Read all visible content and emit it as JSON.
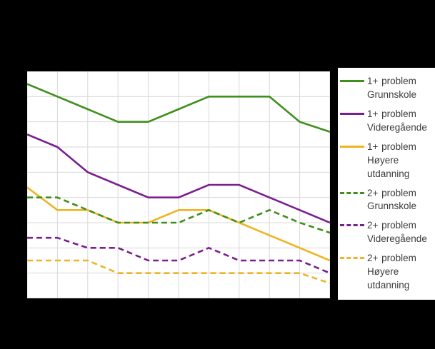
{
  "chart_data": {
    "type": "line",
    "title": "",
    "title_visible": false,
    "x_point_count": 11,
    "x": [
      1,
      2,
      3,
      4,
      5,
      6,
      7,
      8,
      9,
      10,
      11
    ],
    "x_tick_labels_visible": false,
    "y_tick_labels_visible": false,
    "ylim": [
      0,
      45
    ],
    "y_gridline_step": 5,
    "x_gridline_count": 11,
    "grid": true,
    "legend_position": "right",
    "note": "Title and axis tick labels are obscured by black background; y values estimated from unlabeled gridlines assuming a 0-45 scale.",
    "series": [
      {
        "name": "1+ problem Grunnskole",
        "color": "#3f8f1c",
        "line_style": "solid",
        "values": [
          42.5,
          40,
          37.5,
          35,
          35,
          37.5,
          40,
          40,
          40,
          35,
          33
        ]
      },
      {
        "name": "1+ problem Videregående",
        "color": "#7a1f8f",
        "line_style": "solid",
        "values": [
          32.5,
          30,
          25,
          22.5,
          20,
          20,
          22.5,
          22.5,
          20,
          17.5,
          15
        ]
      },
      {
        "name": "1+ problem Høyere utdanning",
        "color": "#eeb422",
        "line_style": "solid",
        "values": [
          22,
          17.5,
          17.5,
          15,
          15,
          17.5,
          17.5,
          15,
          12.5,
          10,
          7.5
        ]
      },
      {
        "name": "2+ problem Grunnskole",
        "color": "#3f8f1c",
        "line_style": "dashed",
        "values": [
          20,
          20,
          17.5,
          15,
          15,
          15,
          17.5,
          15,
          17.5,
          15,
          13
        ]
      },
      {
        "name": "2+ problem Videregående",
        "color": "#7a1f8f",
        "line_style": "dashed",
        "values": [
          12,
          12,
          10,
          10,
          7.5,
          7.5,
          10,
          7.5,
          7.5,
          7.5,
          5
        ]
      },
      {
        "name": "2+ problem Høyere utdanning",
        "color": "#eeb422",
        "line_style": "dashed",
        "values": [
          7.5,
          7.5,
          7.5,
          5,
          5,
          5,
          5,
          5,
          5,
          5,
          3
        ]
      }
    ]
  },
  "colors": {
    "background": "#000000",
    "plot_background": "#ffffff",
    "gridline": "#d8d8d8",
    "legend_background": "#ffffff",
    "legend_text": "#3d3d3d"
  }
}
